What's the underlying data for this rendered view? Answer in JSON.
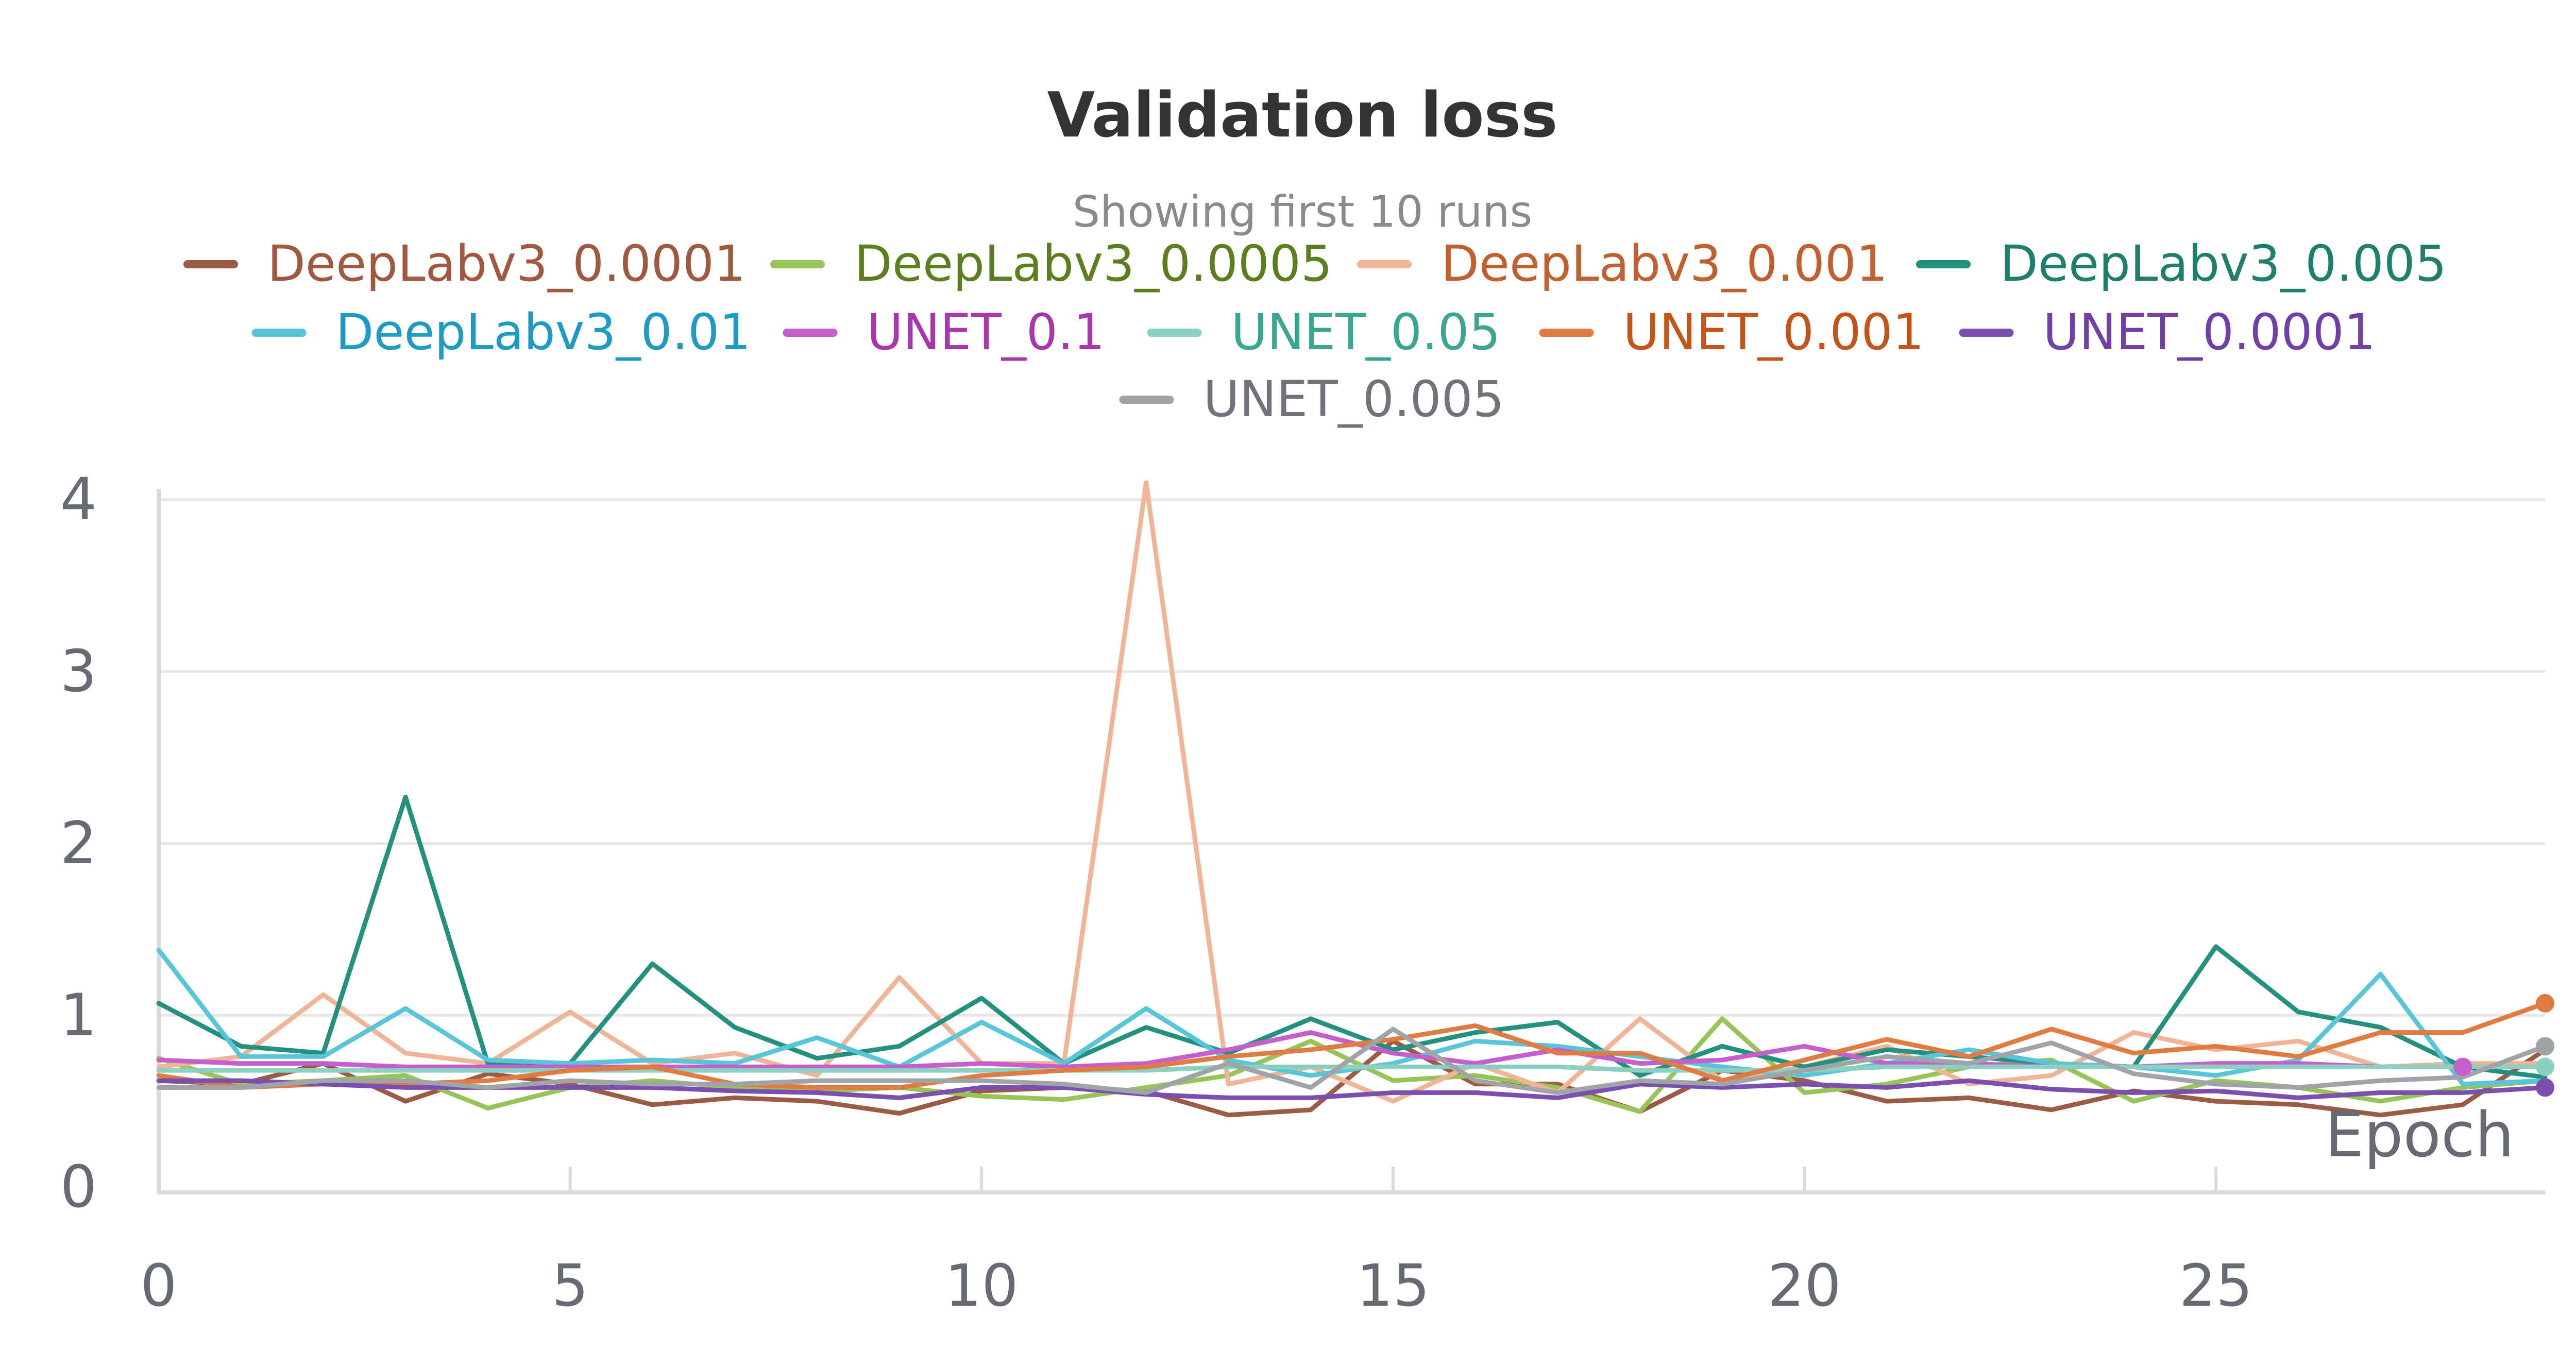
{
  "chart_data": {
    "type": "line",
    "title": "Validation loss",
    "subtitle": "Showing first 10 runs",
    "xlabel": "Epoch",
    "ylabel": "",
    "xlim": [
      0,
      29
    ],
    "ylim": [
      0,
      4.1
    ],
    "xticks": [
      0,
      5,
      10,
      15,
      20,
      25
    ],
    "yticks": [
      0,
      1,
      2,
      3,
      4
    ],
    "grid": true,
    "legend_position": "top",
    "x": [
      0,
      1,
      2,
      3,
      4,
      5,
      6,
      7,
      8,
      9,
      10,
      11,
      12,
      13,
      14,
      15,
      16,
      17,
      18,
      19,
      20,
      21,
      22,
      23,
      24,
      25,
      26,
      27,
      28,
      29
    ],
    "series": [
      {
        "name": "DeepLabv3_0.0001",
        "line_color": "#9c5b45",
        "text_color": "#a0583f",
        "values": [
          0.62,
          0.6,
          0.72,
          0.5,
          0.66,
          0.6,
          0.48,
          0.52,
          0.5,
          0.43,
          0.56,
          0.58,
          0.56,
          0.42,
          0.45,
          0.85,
          0.6,
          0.6,
          0.44,
          0.68,
          0.62,
          0.5,
          0.52,
          0.45,
          0.56,
          0.5,
          0.48,
          0.42,
          0.48,
          0.8
        ]
      },
      {
        "name": "DeepLabv3_0.0005",
        "line_color": "#97c456",
        "text_color": "#5b7f1f",
        "values": [
          0.75,
          0.6,
          0.62,
          0.65,
          0.46,
          0.58,
          0.62,
          0.58,
          0.56,
          0.58,
          0.53,
          0.51,
          0.58,
          0.65,
          0.85,
          0.62,
          0.65,
          0.58,
          0.44,
          0.98,
          0.55,
          0.6,
          0.7,
          0.74,
          0.5,
          0.62,
          0.58,
          0.5,
          0.58,
          0.62
        ]
      },
      {
        "name": "DeepLabv3_0.001",
        "line_color": "#f0b497",
        "text_color": "#c15f2f",
        "values": [
          0.7,
          0.76,
          1.12,
          0.78,
          0.72,
          1.02,
          0.72,
          0.78,
          0.65,
          1.22,
          0.72,
          0.72,
          4.1,
          0.6,
          0.7,
          0.5,
          0.72,
          0.55,
          0.98,
          0.62,
          0.7,
          0.82,
          0.6,
          0.65,
          0.9,
          0.8,
          0.85,
          0.7,
          0.72,
          0.72
        ]
      },
      {
        "name": "DeepLabv3_0.005",
        "line_color": "#24917e",
        "text_color": "#1e7f6d",
        "values": [
          1.07,
          0.82,
          0.78,
          2.27,
          0.72,
          0.72,
          1.3,
          0.93,
          0.75,
          0.82,
          1.1,
          0.72,
          0.93,
          0.78,
          0.98,
          0.8,
          0.9,
          0.96,
          0.65,
          0.82,
          0.7,
          0.8,
          0.76,
          0.72,
          0.7,
          1.4,
          1.02,
          0.93,
          0.7,
          0.64
        ]
      },
      {
        "name": "DeepLabv3_0.01",
        "line_color": "#58c6d8",
        "text_color": "#1e9bc4",
        "values": [
          1.38,
          0.76,
          0.76,
          1.04,
          0.74,
          0.72,
          0.74,
          0.72,
          0.87,
          0.7,
          0.96,
          0.72,
          1.04,
          0.74,
          0.65,
          0.72,
          0.85,
          0.82,
          0.76,
          0.7,
          0.65,
          0.72,
          0.8,
          0.72,
          0.7,
          0.65,
          0.74,
          1.24,
          0.6,
          0.62
        ]
      },
      {
        "name": "UNET_0.1",
        "line_color": "#c55fcb",
        "text_color": "#a936ad",
        "values": [
          0.74,
          0.72,
          0.72,
          0.7,
          0.7,
          0.7,
          0.7,
          0.7,
          0.7,
          0.7,
          0.72,
          0.7,
          0.72,
          0.8,
          0.9,
          0.78,
          0.72,
          0.8,
          0.72,
          0.74,
          0.82,
          0.72,
          0.72,
          0.7,
          0.7,
          0.72,
          0.72,
          0.7,
          0.7,
          0.7
        ]
      },
      {
        "name": "UNET_0.05",
        "line_color": "#8bd0c1",
        "text_color": "#3aa68f",
        "values": [
          0.68,
          0.68,
          0.68,
          0.68,
          0.68,
          0.68,
          0.68,
          0.68,
          0.68,
          0.68,
          0.68,
          0.68,
          0.68,
          0.7,
          0.7,
          0.7,
          0.7,
          0.7,
          0.68,
          0.68,
          0.68,
          0.7,
          0.7,
          0.7,
          0.7,
          0.7,
          0.7,
          0.7,
          0.7,
          0.7
        ]
      },
      {
        "name": "UNET_0.001",
        "line_color": "#e07b42",
        "text_color": "#c4541a",
        "values": [
          0.65,
          0.58,
          0.6,
          0.6,
          0.62,
          0.68,
          0.7,
          0.6,
          0.58,
          0.58,
          0.65,
          0.68,
          0.7,
          0.76,
          0.8,
          0.86,
          0.94,
          0.78,
          0.78,
          0.62,
          0.74,
          0.86,
          0.76,
          0.92,
          0.78,
          0.82,
          0.76,
          0.9,
          0.9,
          1.07
        ]
      },
      {
        "name": "UNET_0.0001",
        "line_color": "#7b4fb0",
        "text_color": "#7040a8",
        "values": [
          0.62,
          0.62,
          0.6,
          0.58,
          0.58,
          0.58,
          0.58,
          0.56,
          0.55,
          0.52,
          0.58,
          0.58,
          0.54,
          0.52,
          0.52,
          0.55,
          0.55,
          0.52,
          0.6,
          0.58,
          0.6,
          0.58,
          0.62,
          0.57,
          0.55,
          0.56,
          0.52,
          0.55,
          0.55,
          0.58
        ]
      },
      {
        "name": "UNET_0.005",
        "line_color": "#a0a4a8",
        "text_color": "#70747a",
        "values": [
          0.58,
          0.58,
          0.62,
          0.62,
          0.58,
          0.62,
          0.6,
          0.6,
          0.62,
          0.62,
          0.62,
          0.6,
          0.55,
          0.72,
          0.58,
          0.92,
          0.62,
          0.55,
          0.62,
          0.6,
          0.68,
          0.76,
          0.72,
          0.84,
          0.66,
          0.6,
          0.58,
          0.62,
          0.64,
          0.82
        ]
      }
    ]
  }
}
